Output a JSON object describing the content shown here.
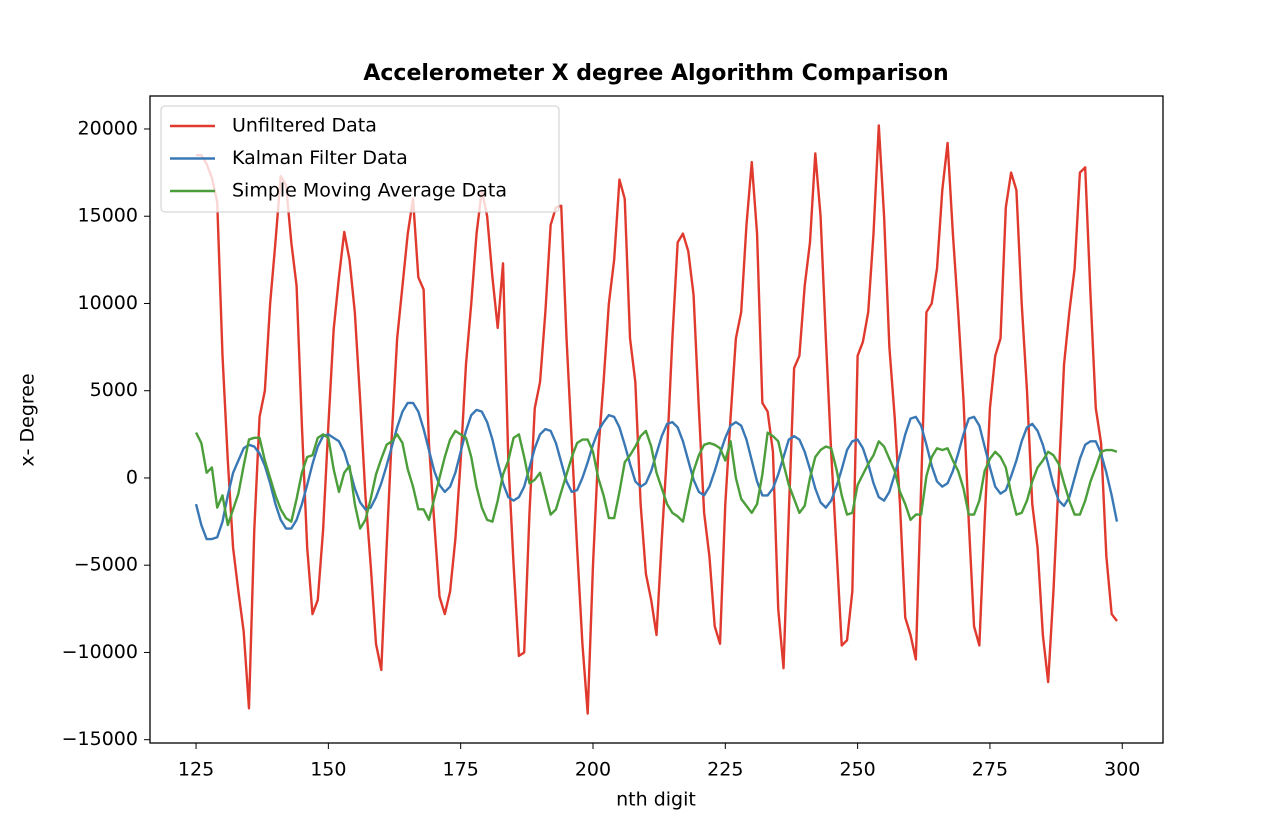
{
  "chart_data": {
    "type": "line",
    "title": "Accelerometer X degree Algorithm Comparison",
    "x_label": "nth digit",
    "y_label": "x-  Degree",
    "legend": "upper left",
    "grid": false,
    "x": [
      125,
      126,
      127,
      128,
      129,
      130,
      131,
      132,
      133,
      134,
      135,
      136,
      137,
      138,
      139,
      140,
      141,
      142,
      143,
      144,
      145,
      146,
      147,
      148,
      149,
      150,
      151,
      152,
      153,
      154,
      155,
      156,
      157,
      158,
      159,
      160,
      161,
      162,
      163,
      164,
      165,
      166,
      167,
      168,
      169,
      170,
      171,
      172,
      173,
      174,
      175,
      176,
      177,
      178,
      179,
      180,
      181,
      182,
      183,
      184,
      185,
      186,
      187,
      188,
      189,
      190,
      191,
      192,
      193,
      194,
      195,
      196,
      197,
      198,
      199,
      200,
      201,
      202,
      203,
      204,
      205,
      206,
      207,
      208,
      209,
      210,
      211,
      212,
      213,
      214,
      215,
      216,
      217,
      218,
      219,
      220,
      221,
      222,
      223,
      224,
      225,
      226,
      227,
      228,
      229,
      230,
      231,
      232,
      233,
      234,
      235,
      236,
      237,
      238,
      239,
      240,
      241,
      242,
      243,
      244,
      245,
      246,
      247,
      248,
      249,
      250,
      251,
      252,
      253,
      254,
      255,
      256,
      257,
      258,
      259,
      260,
      261,
      262,
      263,
      264,
      265,
      266,
      267,
      268,
      269,
      270,
      271,
      272,
      273,
      274,
      275,
      276,
      277,
      278,
      279,
      280,
      281,
      282,
      283,
      284,
      285,
      286,
      287,
      288,
      289,
      290,
      291,
      292,
      293,
      294,
      295,
      296,
      297,
      298,
      299
    ],
    "series": [
      {
        "name": "Unfiltered Data",
        "color": "#e03a2e",
        "values": [
          18500,
          18500,
          18000,
          17200,
          15800,
          7000,
          1000,
          -4000,
          -6500,
          -8800,
          -13200,
          -3000,
          3500,
          5000,
          10000,
          13500,
          17300,
          16800,
          13500,
          11000,
          3000,
          -4000,
          -7800,
          -7000,
          -3000,
          3000,
          8500,
          11500,
          14100,
          12500,
          9500,
          4500,
          -1000,
          -5000,
          -9500,
          -11000,
          -4000,
          2500,
          8000,
          11000,
          14000,
          16000,
          11500,
          10800,
          2000,
          -2500,
          -6800,
          -7800,
          -6500,
          -3500,
          1000,
          6500,
          10000,
          14000,
          16500,
          15000,
          11500,
          8600,
          12300,
          1000,
          -5000,
          -10200,
          -10000,
          -2000,
          4000,
          5500,
          9500,
          14500,
          15500,
          15600,
          8000,
          2000,
          -4000,
          -9500,
          -13500,
          -5000,
          1500,
          5500,
          10000,
          12500,
          17100,
          16000,
          8000,
          5500,
          -1500,
          -5500,
          -7000,
          -9000,
          -3500,
          1500,
          8000,
          13500,
          14000,
          13000,
          10500,
          4000,
          -2000,
          -4500,
          -8500,
          -9500,
          -1500,
          3500,
          8000,
          9500,
          14500,
          18100,
          14000,
          4300,
          3800,
          1500,
          -7500,
          -10900,
          -2000,
          6300,
          7000,
          11000,
          13500,
          18600,
          15000,
          8000,
          1500,
          -4000,
          -9600,
          -9300,
          -6500,
          7000,
          7800,
          9500,
          14000,
          20200,
          15000,
          7500,
          3500,
          -1500,
          -8000,
          -9000,
          -10400,
          -500,
          9500,
          10000,
          12000,
          16500,
          19200,
          14000,
          9500,
          4500,
          -2500,
          -8500,
          -9600,
          -2500,
          4000,
          7000,
          8000,
          15500,
          17500,
          16500,
          10000,
          5000,
          -1500,
          -4000,
          -9000,
          -11700,
          -6500,
          0,
          6500,
          9500,
          12000,
          17500,
          17800,
          10500,
          4000,
          2000,
          -4500,
          -7800,
          -8200
        ]
      },
      {
        "name": "Kalman Filter Data",
        "color": "#3a78b5",
        "values": [
          -1500,
          -2700,
          -3500,
          -3500,
          -3400,
          -2500,
          -1000,
          300,
          1000,
          1700,
          1900,
          1800,
          1400,
          700,
          -300,
          -1500,
          -2400,
          -2900,
          -2900,
          -2400,
          -1500,
          -400,
          800,
          1800,
          2400,
          2500,
          2300,
          2100,
          1500,
          500,
          -600,
          -1400,
          -1800,
          -1700,
          -1100,
          -300,
          700,
          1800,
          2900,
          3800,
          4300,
          4300,
          3800,
          2800,
          1600,
          400,
          -400,
          -800,
          -500,
          300,
          1500,
          2700,
          3600,
          3900,
          3800,
          3200,
          2200,
          900,
          -300,
          -1100,
          -1300,
          -1100,
          -500,
          600,
          1700,
          2500,
          2800,
          2700,
          2000,
          900,
          -200,
          -800,
          -700,
          0,
          900,
          1900,
          2700,
          3200,
          3600,
          3500,
          2900,
          1900,
          800,
          -200,
          -500,
          -300,
          400,
          1400,
          2400,
          3100,
          3200,
          2900,
          2100,
          1000,
          -100,
          -800,
          -1000,
          -500,
          400,
          1400,
          2300,
          3000,
          3200,
          3000,
          2200,
          1000,
          -200,
          -1000,
          -1000,
          -600,
          200,
          1200,
          2200,
          2400,
          2200,
          1500,
          500,
          -600,
          -1400,
          -1700,
          -1300,
          -500,
          500,
          1600,
          2100,
          2200,
          1700,
          800,
          -300,
          -1100,
          -1300,
          -800,
          200,
          1300,
          2500,
          3400,
          3500,
          3000,
          1900,
          700,
          -200,
          -500,
          -300,
          400,
          1400,
          2500,
          3400,
          3500,
          3000,
          1800,
          600,
          -500,
          -900,
          -700,
          100,
          1000,
          2100,
          2900,
          3100,
          2700,
          1900,
          800,
          -400,
          -1300,
          -1600,
          -1100,
          0,
          1100,
          1900,
          2100,
          2100,
          1400,
          300,
          -1000,
          -2500
        ]
      },
      {
        "name": "Simple Moving Average Data",
        "color": "#4b9e3a",
        "values": [
          2600,
          2000,
          300,
          600,
          -1700,
          -1000,
          -2700,
          -1800,
          -900,
          700,
          2200,
          2300,
          2300,
          1000,
          0,
          -1000,
          -1800,
          -2300,
          -2500,
          -1200,
          300,
          1200,
          1300,
          2300,
          2500,
          2300,
          500,
          -800,
          300,
          700,
          -1500,
          -2900,
          -2400,
          -1200,
          200,
          1100,
          1900,
          2100,
          2500,
          2000,
          500,
          -500,
          -1800,
          -1800,
          -2400,
          -1200,
          0,
          1200,
          2200,
          2700,
          2500,
          2300,
          1200,
          -500,
          -1700,
          -2400,
          -2500,
          -1300,
          200,
          1000,
          2300,
          2500,
          1200,
          -300,
          -100,
          300,
          -900,
          -2100,
          -1800,
          -800,
          200,
          1200,
          2000,
          2200,
          2200,
          1500,
          0,
          -1000,
          -2300,
          -2300,
          -800,
          900,
          1300,
          1800,
          2400,
          2700,
          1800,
          300,
          -600,
          -1500,
          -2000,
          -2200,
          -2500,
          -1000,
          400,
          1300,
          1900,
          2000,
          1900,
          1700,
          1000,
          2100,
          0,
          -1200,
          -1600,
          -2000,
          -1500,
          200,
          2600,
          2400,
          2100,
          800,
          -400,
          -1200,
          -2000,
          -1600,
          0,
          1200,
          1600,
          1800,
          1700,
          500,
          -1000,
          -2100,
          -2000,
          -400,
          200,
          800,
          1300,
          2100,
          1800,
          1100,
          400,
          -800,
          -1500,
          -2400,
          -2100,
          -2100,
          100,
          1200,
          1700,
          1600,
          1700,
          1000,
          400,
          -600,
          -2100,
          -2100,
          -1300,
          400,
          1100,
          1500,
          1200,
          600,
          -900,
          -2100,
          -2000,
          -1300,
          -200,
          600,
          1000,
          1500,
          1300,
          800,
          -300,
          -1300,
          -2100,
          -2100,
          -1300,
          -200,
          600,
          1500,
          1600,
          1600,
          1500
        ]
      }
    ],
    "xlim": [
      116.3,
      307.7
    ],
    "xticks": [
      125,
      150,
      175,
      200,
      225,
      250,
      275,
      300
    ],
    "ylim": [
      -15190,
      21890
    ],
    "yticks": [
      {
        "value": -15000,
        "label": "−15000"
      },
      {
        "value": -10000,
        "label": "−10000"
      },
      {
        "value": -5000,
        "label": "−5000"
      },
      0,
      5000,
      10000,
      15000,
      20000
    ]
  }
}
